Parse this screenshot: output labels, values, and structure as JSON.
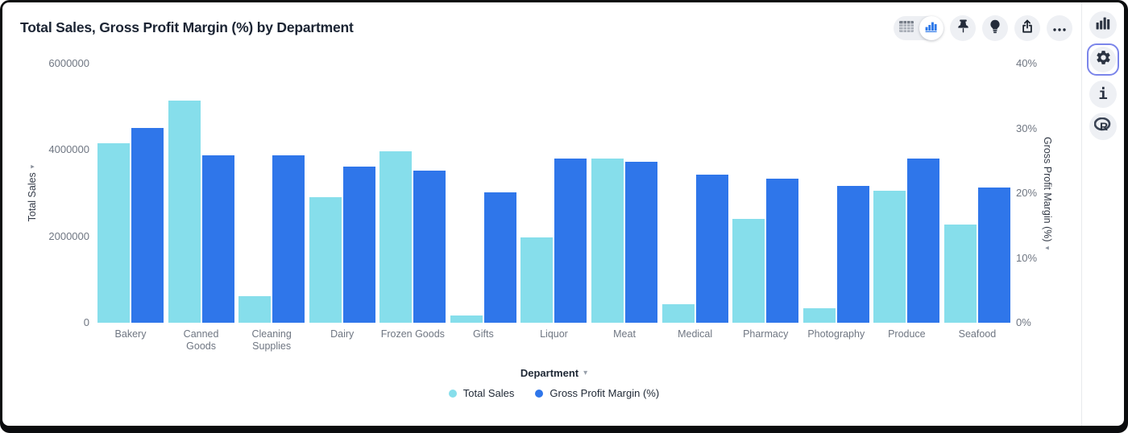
{
  "header": {
    "title": "Total Sales, Gross Profit Margin (%) by Department"
  },
  "toolbar": {
    "view_toggle": {
      "options": [
        "table-view-icon",
        "chart-view-icon"
      ],
      "selected": "chart-view-icon"
    },
    "buttons": [
      {
        "icon": "pin-icon"
      },
      {
        "icon": "lightbulb-icon"
      },
      {
        "icon": "share-icon"
      },
      {
        "icon": "ellipsis-icon"
      }
    ]
  },
  "right_rail": {
    "items": [
      {
        "icon": "bar-chart-icon",
        "selected": false
      },
      {
        "icon": "gear-icon",
        "selected": true
      },
      {
        "icon": "info-icon",
        "selected": false,
        "glyph": "i"
      },
      {
        "icon": "r-logo-icon",
        "selected": false,
        "glyph": "R"
      }
    ]
  },
  "theme": {
    "series_cyan": "#86DEEB",
    "series_blue": "#2F76EA",
    "selected_border": "#7B85EA",
    "title_color": "#1B2433",
    "tick_color": "#6F7682"
  },
  "chart_data": {
    "type": "bar",
    "title": "Total Sales, Gross Profit Margin (%) by Department",
    "xlabel": "Department",
    "ylabel_left": "Total Sales",
    "ylabel_right": "Gross Profit Margin (%)",
    "grid": false,
    "legend_position": "bottom",
    "categories": [
      "Bakery",
      "Canned Goods",
      "Cleaning Supplies",
      "Dairy",
      "Frozen Goods",
      "Gifts",
      "Liquor",
      "Meat",
      "Medical",
      "Pharmacy",
      "Photography",
      "Produce",
      "Seafood"
    ],
    "series": [
      {
        "name": "Total Sales",
        "axis": "left",
        "color": "#86DEEB",
        "values": [
          4150000,
          5140000,
          620000,
          2910000,
          3970000,
          170000,
          1980000,
          3800000,
          430000,
          2400000,
          330000,
          3060000,
          2270000
        ]
      },
      {
        "name": "Gross Profit Margin (%)",
        "axis": "right",
        "color": "#2F76EA",
        "values": [
          30.1,
          25.9,
          25.8,
          24.1,
          23.5,
          20.1,
          25.4,
          24.8,
          22.9,
          22.3,
          21.1,
          25.3,
          20.9
        ]
      }
    ],
    "y_left": {
      "min": 0,
      "max": 6000000,
      "ticks": [
        0,
        2000000,
        4000000,
        6000000
      ]
    },
    "y_right": {
      "min": 0,
      "max": 40,
      "ticks": [
        0,
        10,
        20,
        30,
        40
      ],
      "suffix": "%"
    }
  }
}
